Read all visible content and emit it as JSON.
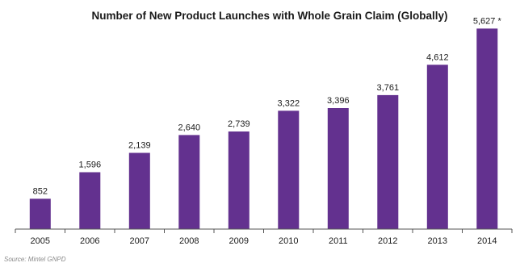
{
  "chart_data": {
    "type": "bar",
    "title": "Number of New Product Launches with Whole Grain Claim (Globally)",
    "categories": [
      "2005",
      "2006",
      "2007",
      "2008",
      "2009",
      "2010",
      "2011",
      "2012",
      "2013",
      "2014"
    ],
    "series": [
      {
        "values": [
          852,
          1596,
          2139,
          2640,
          2739,
          3322,
          3396,
          3761,
          4612,
          5627
        ],
        "data_labels": [
          "852",
          "1,596",
          "2,139",
          "2,640",
          "2,739",
          "3,322",
          "3,396",
          "3,761",
          "4,612",
          "5,627 *"
        ]
      }
    ],
    "ylim": [
      0,
      5750
    ],
    "grid": false,
    "legend": "none",
    "bar_color": "#63318f",
    "axis_color": "#555555",
    "source": "Source: Mintel GNPD"
  }
}
